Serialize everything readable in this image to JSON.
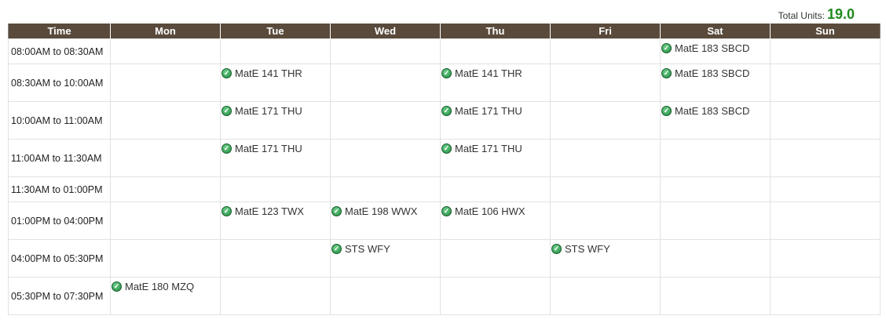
{
  "total": {
    "label": "Total Units:",
    "value": "19.0"
  },
  "headers": [
    "Time",
    "Mon",
    "Tue",
    "Wed",
    "Thu",
    "Fri",
    "Sat",
    "Sun"
  ],
  "rows": [
    {
      "time": "08:00AM to 08:30AM",
      "cells": [
        "",
        "",
        "",
        "",
        "",
        "MatE 183 SBCD",
        ""
      ]
    },
    {
      "time": "08:30AM to 10:00AM",
      "cells": [
        "",
        "MatE 141 THR",
        "",
        "MatE 141 THR",
        "",
        "MatE 183 SBCD",
        ""
      ]
    },
    {
      "time": "10:00AM to 11:00AM",
      "cells": [
        "",
        "MatE 171 THU",
        "",
        "MatE 171 THU",
        "",
        "MatE 183 SBCD",
        ""
      ]
    },
    {
      "time": "11:00AM to 11:30AM",
      "cells": [
        "",
        "MatE 171 THU",
        "",
        "MatE 171 THU",
        "",
        "",
        ""
      ]
    },
    {
      "time": "11:30AM to 01:00PM",
      "cells": [
        "",
        "",
        "",
        "",
        "",
        "",
        ""
      ]
    },
    {
      "time": "01:00PM to 04:00PM",
      "cells": [
        "",
        "MatE 123 TWX",
        "MatE 198 WWX",
        "MatE 106 HWX",
        "",
        "",
        ""
      ]
    },
    {
      "time": "04:00PM to 05:30PM",
      "cells": [
        "",
        "",
        "STS WFY",
        "",
        "STS WFY",
        "",
        ""
      ]
    },
    {
      "time": "05:30PM to 07:30PM",
      "cells": [
        "MatE 180 MZQ",
        "",
        "",
        "",
        "",
        "",
        ""
      ]
    }
  ],
  "icons": {
    "event": "check-circle-icon"
  },
  "colors": {
    "header_bg": "#594a3b",
    "units_value": "#1f8a1f",
    "check": "#2e9e4f"
  }
}
